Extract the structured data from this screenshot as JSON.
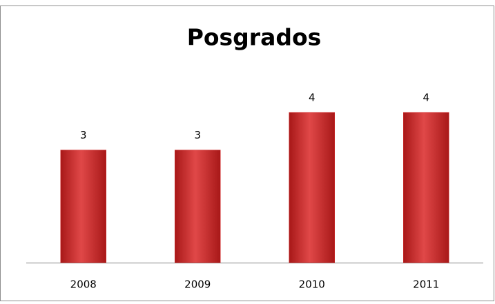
{
  "chart_data": {
    "type": "bar",
    "title": "Posgrados",
    "categories": [
      "2008",
      "2009",
      "2010",
      "2011"
    ],
    "values": [
      3,
      3,
      4,
      4
    ],
    "color": "#d42a2a",
    "data_labels": true,
    "grid": false
  }
}
